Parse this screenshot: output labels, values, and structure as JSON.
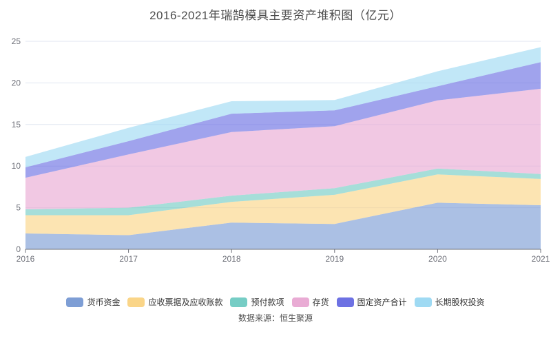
{
  "title": "2016-2021年瑞鹄模具主要资产堆积图（亿元）",
  "source": "数据来源：恒生聚源",
  "axis": {
    "y_tick_labels": [
      "0",
      "5",
      "10",
      "15",
      "20",
      "25"
    ],
    "x_tick_labels": [
      "2016",
      "2017",
      "2018",
      "2019",
      "2020",
      "2021"
    ]
  },
  "colors": {
    "gridline": "#e0e6f1",
    "axis_line": "#6e7079",
    "axis_label": "#6e7079",
    "title_text": "#4b4b4b",
    "legend_text": "#333333"
  },
  "chart_data": {
    "type": "area",
    "stacked": true,
    "title": "2016-2021年瑞鹄模具主要资产堆积图（亿元）",
    "x": [
      "2016",
      "2017",
      "2018",
      "2019",
      "2020",
      "2021"
    ],
    "series": [
      {
        "name": "货币资金",
        "color": "#7e9ed5",
        "values": [
          1.9,
          1.7,
          3.2,
          3.05,
          5.6,
          5.3
        ]
      },
      {
        "name": "应收票据及应收账款",
        "color": "#fad588",
        "values": [
          2.2,
          2.4,
          2.5,
          3.5,
          3.4,
          3.15
        ]
      },
      {
        "name": "预付款项",
        "color": "#76cdc5",
        "values": [
          0.7,
          0.9,
          0.75,
          0.8,
          0.7,
          0.6
        ]
      },
      {
        "name": "存货",
        "color": "#e9abd4",
        "values": [
          3.8,
          6.4,
          7.65,
          7.45,
          8.2,
          10.25
        ]
      },
      {
        "name": "固定资产合计",
        "color": "#6d71e3",
        "values": [
          1.25,
          1.6,
          2.2,
          1.9,
          1.7,
          3.2
        ]
      },
      {
        "name": "长期股权投资",
        "color": "#9fdaf3",
        "values": [
          1.25,
          1.6,
          1.5,
          1.25,
          1.8,
          1.8
        ]
      }
    ],
    "cumulative_totals": [
      11.1,
      14.6,
      17.8,
      17.95,
      21.4,
      24.3
    ],
    "xlabel": "",
    "ylabel": "",
    "ylim": [
      0,
      25
    ],
    "yticks": [
      0,
      5,
      10,
      15,
      20,
      25
    ],
    "grid": true,
    "legend_position": "bottom",
    "area_opacity": 0.65
  }
}
